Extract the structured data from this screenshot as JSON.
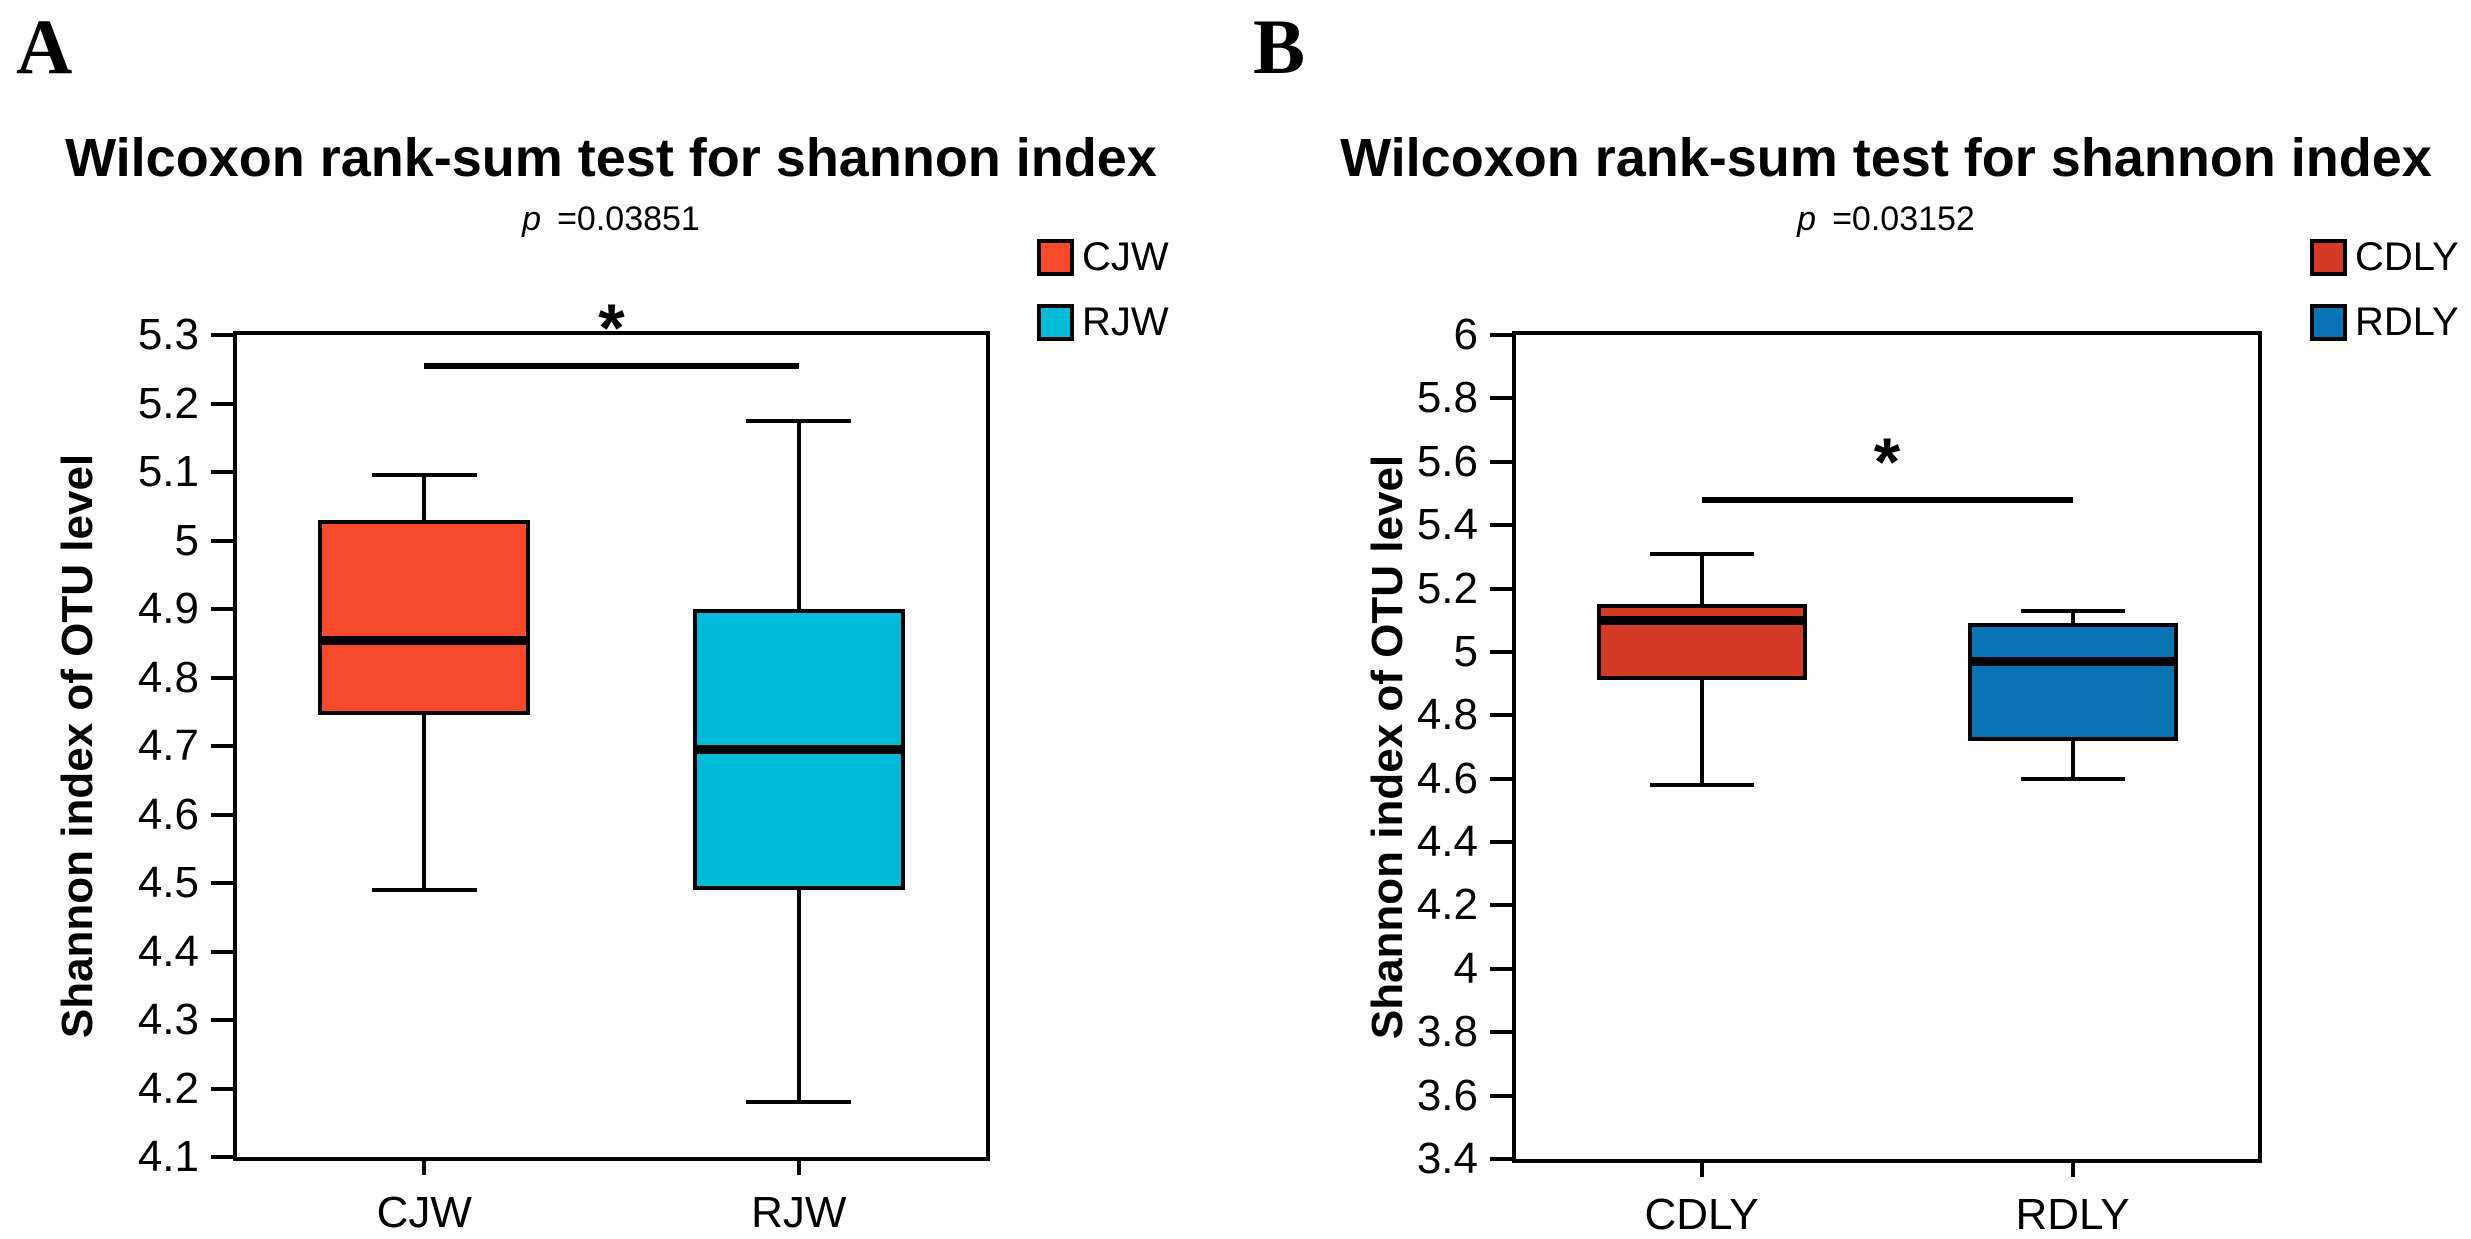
{
  "chart_data": [
    {
      "type": "box",
      "panel_label": "A",
      "title": "Wilcoxon rank-sum test for shannon index",
      "p_symbol": "p",
      "p_value": "=0.03851",
      "ylabel": "Shannon index of OTU level",
      "ylim": [
        4.1,
        5.3
      ],
      "ytick_values": [
        4.1,
        4.2,
        4.3,
        4.4,
        4.5,
        4.6,
        4.7,
        4.8,
        4.9,
        5.0,
        5.1,
        5.2,
        5.3
      ],
      "ytick_labels": [
        "4.1",
        "4.2",
        "4.3",
        "4.4",
        "4.5",
        "4.6",
        "4.7",
        "4.8",
        "4.9",
        "5",
        "5.1",
        "5.2",
        "5.3"
      ],
      "grid": "off",
      "legend_position": "top-right-outside",
      "categories": [
        "CJW",
        "RJW"
      ],
      "series": [
        {
          "name": "CJW",
          "color": "#F7492C",
          "whisker_low": 4.49,
          "q1": 4.745,
          "median": 4.855,
          "q3": 5.03,
          "whisker_high": 5.095
        },
        {
          "name": "RJW",
          "color": "#00BCD8",
          "whisker_low": 4.18,
          "q1": 4.49,
          "median": 4.695,
          "q3": 4.9,
          "whisker_high": 5.175
        }
      ],
      "significance": {
        "label": "*",
        "bar_y": 5.255,
        "from": "CJW",
        "to": "RJW"
      },
      "legend": [
        {
          "label": "CJW",
          "color": "#F7492C"
        },
        {
          "label": "RJW",
          "color": "#00BCD8"
        }
      ]
    },
    {
      "type": "box",
      "panel_label": "B",
      "title": "Wilcoxon rank-sum test for shannon index",
      "p_symbol": "p",
      "p_value": "=0.03152",
      "ylabel": "Shannon index of OTU level",
      "ylim": [
        3.4,
        6.0
      ],
      "ytick_values": [
        3.4,
        3.6,
        3.8,
        4.0,
        4.2,
        4.4,
        4.6,
        4.8,
        5.0,
        5.2,
        5.4,
        5.6,
        5.8,
        6.0
      ],
      "ytick_labels": [
        "3.4",
        "3.6",
        "3.8",
        "4",
        "4.2",
        "4.4",
        "4.6",
        "4.8",
        "5",
        "5.2",
        "5.4",
        "5.6",
        "5.8",
        "6"
      ],
      "grid": "off",
      "legend_position": "top-right-outside",
      "categories": [
        "CDLY",
        "RDLY"
      ],
      "series": [
        {
          "name": "CDLY",
          "color": "#D43A26",
          "whisker_low": 4.58,
          "q1": 4.91,
          "median": 5.1,
          "q3": 5.15,
          "whisker_high": 5.31
        },
        {
          "name": "RDLY",
          "color": "#0874B4",
          "whisker_low": 4.6,
          "q1": 4.72,
          "median": 4.97,
          "q3": 5.09,
          "whisker_high": 5.13
        }
      ],
      "significance": {
        "label": "*",
        "bar_y": 5.48,
        "from": "CDLY",
        "to": "RDLY"
      },
      "legend": [
        {
          "label": "CDLY",
          "color": "#D43A26"
        },
        {
          "label": "RDLY",
          "color": "#0874B4"
        }
      ]
    }
  ]
}
